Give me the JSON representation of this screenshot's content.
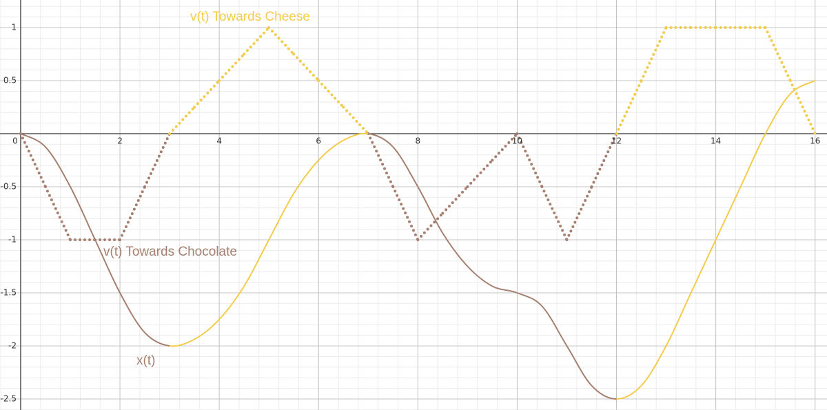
{
  "chart_data": {
    "type": "line",
    "x": [
      0,
      0.5,
      1,
      1.5,
      2,
      2.5,
      3,
      3.5,
      4,
      4.5,
      5,
      5.5,
      6,
      6.5,
      7,
      7.5,
      8,
      8.5,
      9,
      9.5,
      10,
      10.5,
      11,
      11.5,
      12,
      12.5,
      13,
      13.5,
      14,
      14.5,
      15,
      15.5,
      16
    ],
    "series": [
      {
        "style": "dotted",
        "values": [
          0,
          -0.5,
          -1,
          -1,
          -1,
          -0.5,
          0,
          0.25,
          0.5,
          0.75,
          1,
          0.75,
          0.5,
          0.25,
          0,
          -0.5,
          -1,
          -0.75,
          -0.5,
          -0.25,
          0,
          -0.5,
          -1,
          -0.5,
          0,
          0.5,
          1,
          1,
          1,
          1,
          1,
          0.5,
          0
        ]
      },
      {
        "name": "x(t)",
        "style": "solid",
        "values": [
          0,
          -0.125,
          -0.5,
          -1,
          -1.5,
          -1.875,
          -2,
          -1.9375,
          -1.75,
          -1.4375,
          -1,
          -0.5625,
          -0.25,
          -0.0625,
          0,
          -0.125,
          -0.5,
          -0.9375,
          -1.25,
          -1.4375,
          -1.5,
          -1.625,
          -2,
          -2.375,
          -2.5,
          -2.375,
          -2,
          -1.5,
          -1,
          -0.5,
          0,
          0.375,
          0.5
        ]
      }
    ],
    "annotations": [
      "v(t) Towards Cheese",
      "v(t) Towards Chocolate"
    ],
    "positive_color": "#f2cc4a",
    "negative_color": "#a57f70",
    "xlim": [
      -0.416,
      16.24
    ],
    "ylim": [
      -2.604,
      1.26
    ],
    "xticks": [
      0,
      2,
      4,
      6,
      8,
      10,
      12,
      14,
      16
    ],
    "yticks": [
      1,
      0.5,
      -0.5,
      -1,
      -1.5,
      -2,
      -2.5
    ],
    "grid": true
  }
}
